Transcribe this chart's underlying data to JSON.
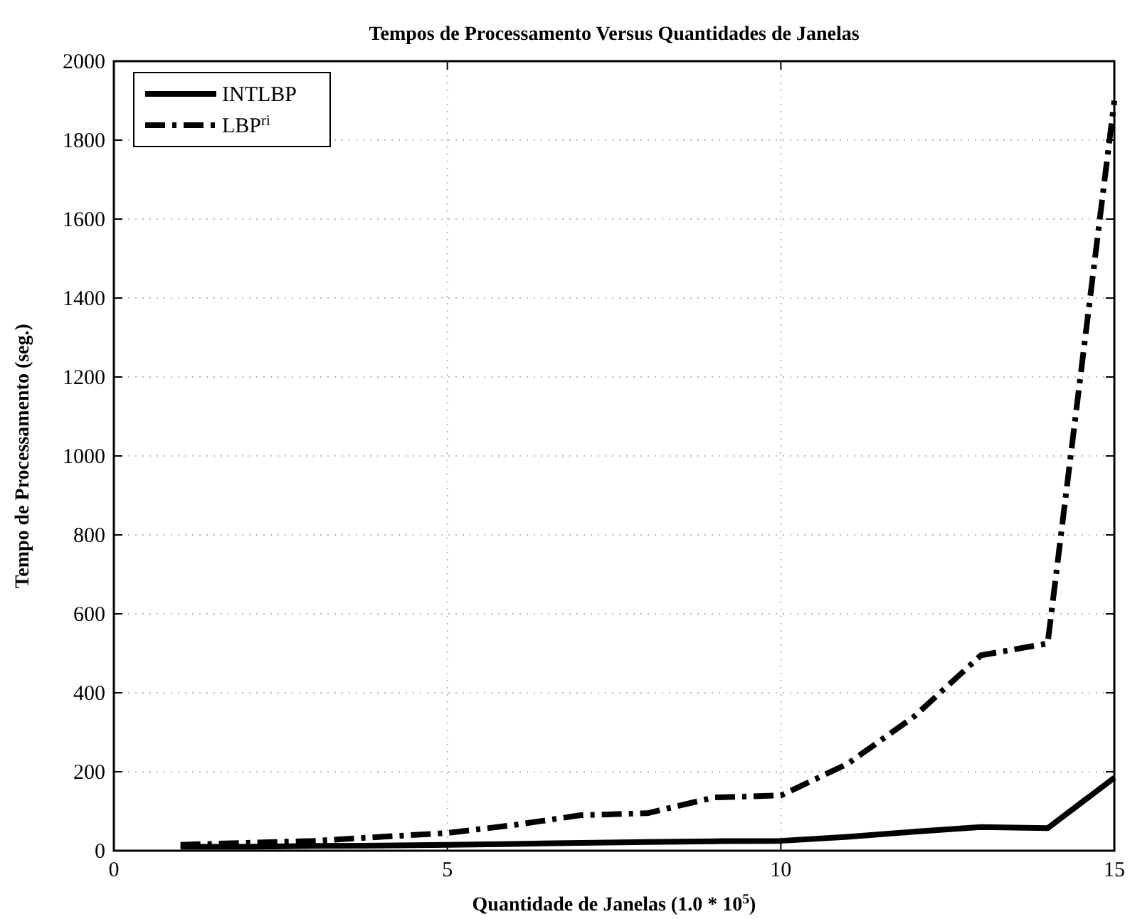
{
  "chart_data": {
    "type": "line",
    "title": "Tempos de Processamento Versus Quantidades de Janelas",
    "xlabel": "Quantidade de Janelas (1.0 * 10$^{5}$)",
    "ylabel": "Tempo de Processamento (seg.)",
    "x": [
      1,
      2,
      3,
      4,
      5,
      6,
      7,
      8,
      9,
      10,
      11,
      12,
      13,
      14,
      15
    ],
    "series": [
      {
        "name": "INTLBP",
        "color": "#000000",
        "line_style": "solid",
        "values": [
          10,
          10,
          12,
          13,
          15,
          17,
          20,
          22,
          24,
          25,
          35,
          48,
          60,
          57,
          185
        ]
      },
      {
        "name": "LBP$^{ri}$",
        "color": "#000000",
        "line_style": "dashed",
        "values": [
          15,
          20,
          25,
          35,
          45,
          65,
          90,
          95,
          135,
          140,
          220,
          340,
          495,
          525,
          1900
        ]
      }
    ],
    "xlim": [
      0,
      15
    ],
    "xticks": [
      0,
      5,
      10,
      15
    ],
    "ylim": [
      0,
      2000
    ],
    "yticks": [
      0,
      200,
      400,
      600,
      800,
      1000,
      1200,
      1400,
      1600,
      1800,
      2000
    ],
    "grid": true,
    "legend": "top left",
    "marker": "none"
  }
}
